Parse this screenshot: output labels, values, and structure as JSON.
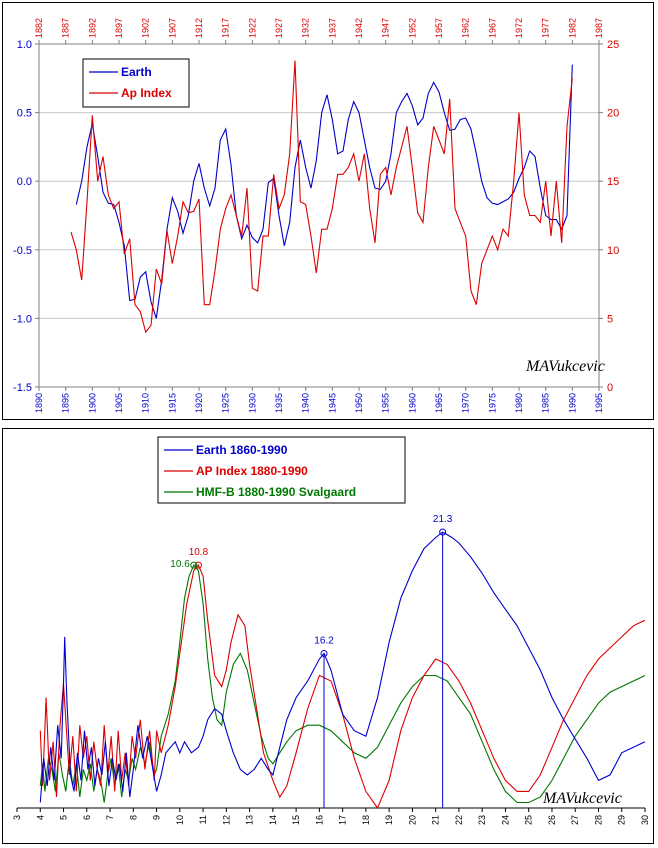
{
  "colors": {
    "earth": "#0000cc",
    "ap": "#dd0000",
    "hmf": "#007700",
    "grid": "#c8c8c8",
    "axis": "#808080"
  },
  "chart_data": [
    {
      "type": "line",
      "legend": [
        "Earth",
        "Ap Index"
      ],
      "legend_position": "top-left",
      "signature": "MAVukcevic",
      "grid": true,
      "xlim": [
        1890,
        1995
      ],
      "x_ticks": [
        1890,
        1895,
        1900,
        1905,
        1910,
        1915,
        1920,
        1925,
        1930,
        1935,
        1940,
        1945,
        1950,
        1955,
        1960,
        1965,
        1970,
        1975,
        1980,
        1985,
        1990,
        1995
      ],
      "x_top_ticks": [
        1882,
        1887,
        1892,
        1897,
        1902,
        1907,
        1912,
        1917,
        1922,
        1927,
        1932,
        1937,
        1942,
        1947,
        1952,
        1957,
        1962,
        1967,
        1972,
        1977,
        1982,
        1987
      ],
      "ylim_left": [
        -1.5,
        1.0
      ],
      "y_left_ticks": [
        "1.0",
        "0.5",
        "0.0",
        "-0.5",
        "-1.0",
        "-1.5"
      ],
      "ylim_right": [
        0,
        25
      ],
      "y_right_ticks": [
        "25",
        "20",
        "15",
        "10",
        "5",
        "0"
      ],
      "series": [
        {
          "name": "Earth",
          "axis": "left",
          "x": [
            1897,
            1898,
            1899,
            1900,
            1901,
            1902,
            1903,
            1904,
            1905,
            1906,
            1907,
            1908,
            1909,
            1910,
            1911,
            1912,
            1913,
            1914,
            1915,
            1916,
            1917,
            1918,
            1919,
            1920,
            1921,
            1922,
            1923,
            1924,
            1925,
            1926,
            1927,
            1928,
            1929,
            1930,
            1931,
            1932,
            1933,
            1934,
            1935,
            1936,
            1937,
            1938,
            1939,
            1940,
            1941,
            1942,
            1943,
            1944,
            1945,
            1946,
            1947,
            1948,
            1949,
            1950,
            1951,
            1952,
            1953,
            1954,
            1955,
            1956,
            1957,
            1958,
            1959,
            1960,
            1961,
            1962,
            1963,
            1964,
            1965,
            1966,
            1967,
            1968,
            1969,
            1970,
            1971,
            1972,
            1973,
            1974,
            1975,
            1976,
            1977,
            1978,
            1979,
            1980,
            1981,
            1982,
            1983,
            1984,
            1985,
            1986,
            1987,
            1988,
            1989,
            1990
          ],
          "y": [
            -0.17,
            0.0,
            0.25,
            0.42,
            0.18,
            -0.08,
            -0.16,
            -0.17,
            -0.3,
            -0.47,
            -0.87,
            -0.86,
            -0.7,
            -0.66,
            -0.88,
            -1.0,
            -0.72,
            -0.35,
            -0.12,
            -0.22,
            -0.38,
            -0.25,
            0.0,
            0.13,
            -0.05,
            -0.18,
            -0.05,
            0.3,
            0.38,
            0.12,
            -0.25,
            -0.42,
            -0.32,
            -0.41,
            -0.45,
            -0.35,
            -0.01,
            0.02,
            -0.25,
            -0.47,
            -0.3,
            0.1,
            0.3,
            0.1,
            -0.05,
            0.15,
            0.5,
            0.63,
            0.45,
            0.2,
            0.22,
            0.45,
            0.58,
            0.5,
            0.3,
            0.1,
            -0.05,
            -0.06,
            0.0,
            0.2,
            0.5,
            0.58,
            0.64,
            0.55,
            0.41,
            0.46,
            0.64,
            0.72,
            0.65,
            0.5,
            0.37,
            0.38,
            0.45,
            0.46,
            0.38,
            0.2,
            0.0,
            -0.12,
            -0.16,
            -0.17,
            -0.15,
            -0.13,
            -0.08,
            0.02,
            0.1,
            0.22,
            0.18,
            -0.05,
            -0.25,
            -0.28,
            -0.28,
            -0.35,
            -0.25,
            0.85
          ]
        },
        {
          "name": "Ap Index",
          "axis": "right",
          "x": [
            1896,
            1897,
            1898,
            1899,
            1900,
            1901,
            1902,
            1903,
            1904,
            1905,
            1906,
            1907,
            1908,
            1909,
            1910,
            1911,
            1912,
            1913,
            1914,
            1915,
            1916,
            1917,
            1918,
            1919,
            1920,
            1921,
            1922,
            1923,
            1924,
            1925,
            1926,
            1927,
            1928,
            1929,
            1930,
            1931,
            1932,
            1933,
            1934,
            1935,
            1936,
            1937,
            1938,
            1939,
            1940,
            1941,
            1942,
            1943,
            1944,
            1945,
            1946,
            1947,
            1948,
            1949,
            1950,
            1951,
            1952,
            1953,
            1954,
            1955,
            1956,
            1957,
            1958,
            1959,
            1960,
            1961,
            1962,
            1963,
            1964,
            1965,
            1966,
            1967,
            1968,
            1969,
            1970,
            1971,
            1972,
            1973,
            1974,
            1975,
            1976,
            1977,
            1978,
            1979,
            1980,
            1981,
            1982,
            1983,
            1984,
            1985,
            1986,
            1987,
            1988,
            1989,
            1990
          ],
          "y": [
            11.3,
            10.0,
            7.8,
            13.5,
            19.8,
            15.0,
            16.8,
            14.0,
            13.0,
            13.5,
            9.7,
            10.8,
            6.0,
            5.5,
            4.0,
            4.5,
            8.6,
            7.5,
            11.4,
            9.0,
            11.0,
            13.5,
            12.7,
            12.8,
            13.7,
            6.0,
            6.0,
            8.5,
            11.5,
            13.0,
            14.0,
            12.5,
            11.0,
            14.5,
            7.2,
            7.0,
            11.0,
            11.0,
            15.5,
            13.0,
            14.0,
            17.0,
            23.8,
            13.5,
            13.3,
            11.0,
            8.3,
            11.5,
            11.5,
            13.0,
            15.5,
            15.5,
            16.0,
            17.0,
            15.0,
            17.0,
            13.0,
            10.5,
            15.5,
            16.0,
            14.0,
            16.0,
            17.5,
            19.0,
            16.0,
            12.7,
            12.0,
            16.0,
            19.0,
            18.0,
            17.0,
            21.0,
            13.0,
            12.0,
            11.0,
            7.0,
            6.0,
            9.0,
            10.0,
            11.0,
            10.0,
            11.5,
            11.0,
            15.0,
            20.0,
            14.0,
            12.5,
            12.5,
            12.0,
            15.0,
            11.0,
            15.0,
            10.5,
            19.0,
            22.5
          ]
        }
      ]
    },
    {
      "type": "line",
      "legend": [
        "Earth 1860-1990",
        "AP Index 1880-1990",
        "HMF-B 1880-1990 Svalgaard"
      ],
      "legend_position": "top-left",
      "signature": "MAVukcevic",
      "grid": false,
      "xlim": [
        3,
        30
      ],
      "x_ticks": [
        "3",
        "4",
        "5",
        "6",
        "7",
        "8",
        "9",
        "10",
        "11",
        "12",
        "13",
        "14",
        "15",
        "16",
        "17",
        "18",
        "19",
        "20",
        "21",
        "22",
        "23",
        "24",
        "25",
        "26",
        "27",
        "28",
        "29",
        "30"
      ],
      "ylim": [
        0,
        100
      ],
      "peak_labels": [
        {
          "text": "16.2",
          "x": 16.2,
          "series": "Earth 1860-1990",
          "marker_line": true
        },
        {
          "text": "21.3",
          "x": 21.3,
          "series": "Earth 1860-1990",
          "marker_line": true
        },
        {
          "text": "10.8",
          "x": 10.8,
          "series": "AP Index 1880-1990",
          "marker_line": false
        },
        {
          "text": "10.6",
          "x": 10.6,
          "series": "HMF-B 1880-1990 Svalgaard",
          "marker_line": false
        }
      ],
      "series": [
        {
          "name": "Earth 1860-1990",
          "x": [
            4.0,
            4.15,
            4.3,
            4.45,
            4.6,
            4.75,
            4.9,
            5.0,
            5.05,
            5.15,
            5.3,
            5.45,
            5.6,
            5.75,
            5.9,
            6.05,
            6.2,
            6.35,
            6.5,
            6.65,
            6.8,
            6.95,
            7.1,
            7.25,
            7.4,
            7.55,
            7.7,
            7.85,
            8.0,
            8.2,
            8.4,
            8.6,
            8.8,
            9.0,
            9.2,
            9.4,
            9.6,
            9.8,
            10.0,
            10.2,
            10.5,
            10.8,
            11.0,
            11.2,
            11.5,
            11.8,
            12.0,
            12.3,
            12.6,
            12.9,
            13.2,
            13.5,
            13.8,
            14.0,
            14.3,
            14.6,
            15.0,
            15.5,
            16.0,
            16.2,
            16.5,
            17.0,
            17.5,
            18.0,
            18.5,
            19.0,
            19.5,
            20.0,
            20.5,
            21.0,
            21.3,
            21.7,
            22.0,
            22.5,
            23.0,
            23.5,
            24.0,
            24.5,
            25.0,
            25.5,
            26.0,
            26.5,
            27.0,
            27.5,
            28.0,
            28.5,
            29.0,
            29.5,
            30.0
          ],
          "y": [
            2,
            18,
            8,
            22,
            10,
            30,
            18,
            45,
            62,
            38,
            12,
            6,
            20,
            10,
            28,
            14,
            22,
            8,
            18,
            12,
            24,
            8,
            18,
            10,
            16,
            6,
            20,
            4,
            14,
            30,
            18,
            26,
            16,
            6,
            12,
            20,
            22,
            24,
            20,
            24,
            20,
            22,
            26,
            32,
            36,
            34,
            28,
            20,
            14,
            12,
            14,
            18,
            14,
            12,
            22,
            32,
            40,
            46,
            54,
            56,
            50,
            34,
            28,
            26,
            40,
            60,
            76,
            86,
            94,
            98,
            100,
            98,
            96,
            91,
            85,
            78,
            72,
            66,
            58,
            50,
            40,
            32,
            25,
            18,
            10,
            12,
            20,
            22,
            24
          ]
        },
        {
          "name": "AP Index 1880-1990",
          "x": [
            4.0,
            4.1,
            4.25,
            4.4,
            4.55,
            4.7,
            4.85,
            5.0,
            5.1,
            5.25,
            5.4,
            5.55,
            5.7,
            5.85,
            6.0,
            6.15,
            6.3,
            6.45,
            6.6,
            6.75,
            6.9,
            7.05,
            7.2,
            7.35,
            7.5,
            7.65,
            7.8,
            7.95,
            8.1,
            8.3,
            8.5,
            8.7,
            8.9,
            9.0,
            9.2,
            9.5,
            9.8,
            10.0,
            10.3,
            10.6,
            10.8,
            11.0,
            11.2,
            11.5,
            11.8,
            12.0,
            12.2,
            12.5,
            12.8,
            13.0,
            13.3,
            13.6,
            14.0,
            14.3,
            14.6,
            15.0,
            15.5,
            16.0,
            16.5,
            17.0,
            17.5,
            18.0,
            18.5,
            19.0,
            19.5,
            20.0,
            20.5,
            21.0,
            21.5,
            22.0,
            22.5,
            23.0,
            23.5,
            24.0,
            24.5,
            25.0,
            25.5,
            26.0,
            26.5,
            27.0,
            27.5,
            28.0,
            28.5,
            29.0,
            29.5,
            30.0
          ],
          "y": [
            28,
            8,
            40,
            10,
            24,
            4,
            30,
            45,
            32,
            12,
            26,
            6,
            30,
            18,
            26,
            10,
            24,
            14,
            8,
            30,
            12,
            26,
            6,
            28,
            10,
            20,
            8,
            26,
            18,
            32,
            14,
            28,
            10,
            28,
            20,
            30,
            44,
            56,
            74,
            86,
            88,
            84,
            68,
            48,
            44,
            50,
            60,
            70,
            66,
            52,
            36,
            20,
            10,
            4,
            8,
            20,
            36,
            48,
            46,
            34,
            18,
            6,
            0,
            10,
            28,
            40,
            48,
            54,
            52,
            46,
            38,
            28,
            18,
            10,
            6,
            6,
            12,
            22,
            32,
            40,
            48,
            54,
            58,
            62,
            66,
            68
          ]
        },
        {
          "name": "HMF-B 1880-1990 Svalgaard",
          "x": [
            4.0,
            4.1,
            4.2,
            4.35,
            4.5,
            4.65,
            4.8,
            4.95,
            5.1,
            5.25,
            5.4,
            5.55,
            5.7,
            5.85,
            6.0,
            6.15,
            6.3,
            6.45,
            6.6,
            6.75,
            6.9,
            7.05,
            7.2,
            7.35,
            7.5,
            7.65,
            7.8,
            7.95,
            8.1,
            8.3,
            8.5,
            8.7,
            8.9,
            9.0,
            9.2,
            9.5,
            9.8,
            10.0,
            10.2,
            10.4,
            10.6,
            10.8,
            11.0,
            11.2,
            11.4,
            11.6,
            11.8,
            12.0,
            12.3,
            12.6,
            12.9,
            13.2,
            13.5,
            13.8,
            14.0,
            14.3,
            14.6,
            15.0,
            15.5,
            16.0,
            16.5,
            17.0,
            17.5,
            18.0,
            18.5,
            19.0,
            19.5,
            20.0,
            20.5,
            21.0,
            21.5,
            22.0,
            22.5,
            23.0,
            23.5,
            24.0,
            24.5,
            25.0,
            25.5,
            26.0,
            26.5,
            27.0,
            27.5,
            28.0,
            28.5,
            29.0,
            29.5,
            30.0
          ],
          "y": [
            8,
            16,
            6,
            18,
            14,
            6,
            20,
            12,
            6,
            18,
            8,
            16,
            4,
            14,
            10,
            16,
            6,
            14,
            10,
            2,
            12,
            18,
            8,
            16,
            4,
            14,
            10,
            18,
            14,
            22,
            16,
            24,
            12,
            14,
            26,
            34,
            46,
            60,
            76,
            84,
            88,
            86,
            74,
            54,
            40,
            32,
            30,
            42,
            52,
            56,
            50,
            38,
            26,
            18,
            16,
            20,
            24,
            28,
            30,
            30,
            28,
            24,
            20,
            18,
            22,
            30,
            38,
            44,
            48,
            48,
            46,
            40,
            34,
            24,
            14,
            6,
            2,
            2,
            4,
            10,
            18,
            26,
            32,
            38,
            42,
            44,
            46,
            48
          ]
        }
      ]
    }
  ]
}
